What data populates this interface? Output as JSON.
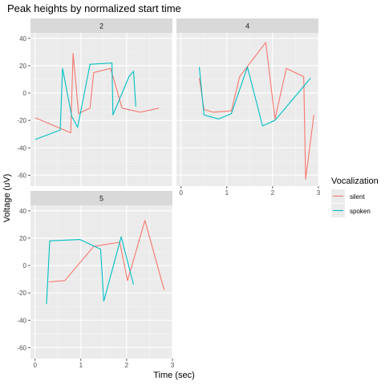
{
  "chart_data": {
    "type": "line",
    "title": "Peak heights by normalized start time",
    "xlabel": "Time (sec)",
    "ylabel": "Voltage (uV)",
    "x_ticks": [
      0,
      1,
      2,
      3
    ],
    "y_ticks": [
      -60,
      -40,
      -20,
      0,
      20,
      40
    ],
    "xlim": [
      -0.1,
      3.0
    ],
    "ylim": [
      -68,
      44
    ],
    "grid": true,
    "legend": {
      "title": "Vocalization",
      "position": "right",
      "items": [
        {
          "name": "silent",
          "color": "#F8766D"
        },
        {
          "name": "spoken",
          "color": "#00BFC4"
        }
      ]
    },
    "facets": [
      {
        "label": "2",
        "series": [
          {
            "name": "silent",
            "color": "#F8766D",
            "x": [
              0.0,
              0.78,
              0.83,
              0.95,
              1.2,
              1.28,
              1.65,
              1.9,
              2.3,
              2.7
            ],
            "y": [
              -18,
              -29,
              29,
              -15,
              -11,
              15,
              18,
              -11,
              -14,
              -11
            ]
          },
          {
            "name": "spoken",
            "color": "#00BFC4",
            "x": [
              0.0,
              0.55,
              0.6,
              0.8,
              0.93,
              1.2,
              1.68,
              1.7,
              2.05,
              2.15,
              2.2
            ],
            "y": [
              -34,
              -27,
              18,
              -17,
              -25,
              21,
              22,
              -16,
              12,
              16,
              -10
            ]
          }
        ]
      },
      {
        "label": "4",
        "series": [
          {
            "name": "silent",
            "color": "#F8766D",
            "x": [
              0.4,
              0.5,
              0.7,
              1.1,
              1.28,
              1.85,
              2.05,
              2.3,
              2.68,
              2.72,
              2.9
            ],
            "y": [
              11,
              -12,
              -14,
              -13,
              12,
              37,
              -19,
              18,
              12,
              -63,
              -16
            ]
          },
          {
            "name": "spoken",
            "color": "#00BFC4",
            "x": [
              0.4,
              0.5,
              0.82,
              1.1,
              1.45,
              1.78,
              2.05,
              2.83
            ],
            "y": [
              19,
              -16,
              -19,
              -15,
              19,
              -24,
              -20,
              11
            ]
          }
        ]
      },
      {
        "label": "5",
        "series": [
          {
            "name": "silent",
            "color": "#F8766D",
            "x": [
              0.3,
              0.65,
              1.28,
              1.85,
              2.02,
              2.4,
              2.82
            ],
            "y": [
              -12,
              -11,
              14,
              17,
              -11,
              33,
              -18
            ]
          },
          {
            "name": "spoken",
            "color": "#00BFC4",
            "x": [
              0.25,
              0.32,
              0.98,
              1.43,
              1.5,
              1.88,
              2.15
            ],
            "y": [
              -28,
              18,
              19,
              12,
              -26,
              21,
              -14
            ]
          }
        ]
      }
    ]
  }
}
